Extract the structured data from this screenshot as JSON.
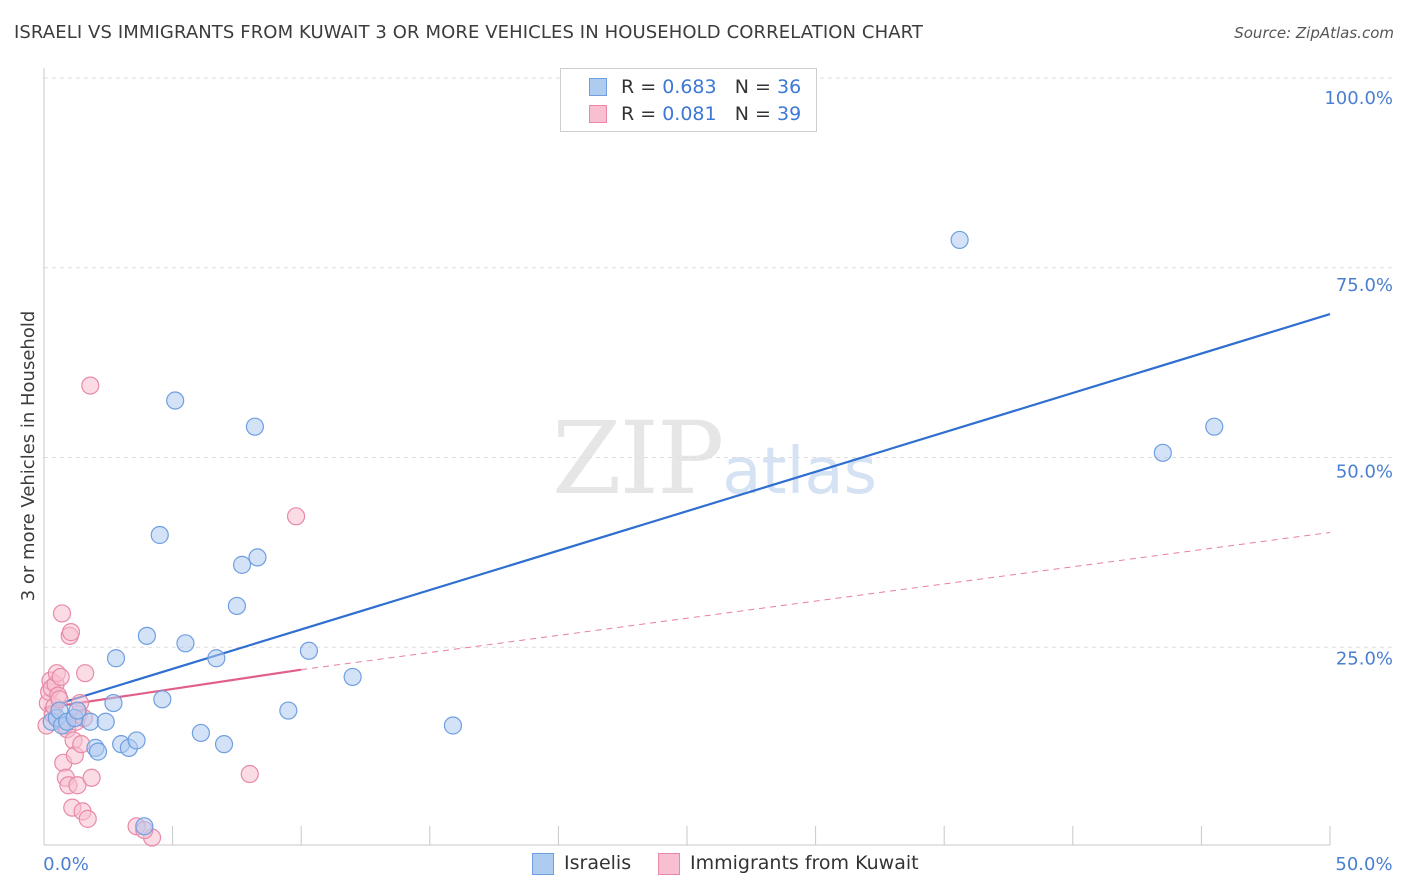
{
  "title": "ISRAELI VS IMMIGRANTS FROM KUWAIT 3 OR MORE VEHICLES IN HOUSEHOLD CORRELATION CHART",
  "source": "Source: ZipAtlas.com",
  "watermark": {
    "zip": "ZIP",
    "atlas": "atlas"
  },
  "legend": {
    "r_label": "R =",
    "n_label": "N =",
    "rows": [
      {
        "r": "0.683",
        "n": "36"
      },
      {
        "r": "0.081",
        "n": "39"
      }
    ]
  },
  "colors": {
    "israelis_fill": "#aecbf0",
    "israelis_stroke": "#6f9fe0",
    "israelis_line": "#2f6fd0",
    "kuwait_fill": "#f7bfd0",
    "kuwait_stroke": "#e889a8",
    "kuwait_line": "#e0608a",
    "tick_text": "#4a7fd1",
    "grid": "#dedede"
  },
  "chart_data": {
    "type": "scatter",
    "title": "ISRAELI VS IMMIGRANTS FROM KUWAIT 3 OR MORE VEHICLES IN HOUSEHOLD CORRELATION CHART",
    "xlabel": "",
    "ylabel": "3 or more Vehicles in Household",
    "xlim": [
      0,
      50
    ],
    "ylim": [
      0,
      100
    ],
    "x_tick_labels": [
      "0.0%",
      "50.0%"
    ],
    "y_ticks": [
      25,
      50,
      75,
      100
    ],
    "y_tick_labels": [
      "25.0%",
      "50.0%",
      "75.0%",
      "100.0%"
    ],
    "grid": true,
    "series": [
      {
        "name": "Israelis",
        "r": 0.683,
        "n": 36,
        "trend": {
          "x0": 0,
          "y0": 17.5,
          "x1": 50,
          "y1": 70,
          "style": "solid"
        },
        "points": [
          [
            0.3,
            16.5
          ],
          [
            0.5,
            17.0
          ],
          [
            0.6,
            18.0
          ],
          [
            0.7,
            16.0
          ],
          [
            0.9,
            16.5
          ],
          [
            1.2,
            17.0
          ],
          [
            1.3,
            18.0
          ],
          [
            1.8,
            16.5
          ],
          [
            2.0,
            13.0
          ],
          [
            2.1,
            12.5
          ],
          [
            2.4,
            16.5
          ],
          [
            2.7,
            19.0
          ],
          [
            2.8,
            25.0
          ],
          [
            3.0,
            13.5
          ],
          [
            3.3,
            13.0
          ],
          [
            3.6,
            14.0
          ],
          [
            3.9,
            2.5
          ],
          [
            4.0,
            28.0
          ],
          [
            4.6,
            19.5
          ],
          [
            4.5,
            41.5
          ],
          [
            5.1,
            59.5
          ],
          [
            5.5,
            27.0
          ],
          [
            6.1,
            15.0
          ],
          [
            6.7,
            25.0
          ],
          [
            7.0,
            13.5
          ],
          [
            7.5,
            32.0
          ],
          [
            7.7,
            37.5
          ],
          [
            8.2,
            56.0
          ],
          [
            8.3,
            38.5
          ],
          [
            9.5,
            18.0
          ],
          [
            10.3,
            26.0
          ],
          [
            12.0,
            22.5
          ],
          [
            15.9,
            16.0
          ],
          [
            35.6,
            81.0
          ],
          [
            43.5,
            52.5
          ],
          [
            45.5,
            56.0
          ]
        ]
      },
      {
        "name": "Immigrants from Kuwait",
        "r": 0.081,
        "n": 39,
        "trend": {
          "x0": 0,
          "y0": 17.5,
          "x1": 10,
          "y1": 22,
          "style": "solid",
          "extended": {
            "x1": 50,
            "y1": 40.5,
            "style": "dashed"
          }
        },
        "points": [
          [
            0.1,
            16.0
          ],
          [
            0.15,
            19.0
          ],
          [
            0.2,
            20.5
          ],
          [
            0.25,
            22.0
          ],
          [
            0.3,
            21.0
          ],
          [
            0.35,
            17.5
          ],
          [
            0.4,
            18.5
          ],
          [
            0.45,
            21.5
          ],
          [
            0.5,
            23.0
          ],
          [
            0.55,
            20.0
          ],
          [
            0.6,
            19.5
          ],
          [
            0.65,
            22.5
          ],
          [
            0.7,
            31.0
          ],
          [
            0.75,
            11.0
          ],
          [
            0.8,
            16.0
          ],
          [
            0.85,
            9.0
          ],
          [
            0.9,
            15.5
          ],
          [
            0.95,
            8.0
          ],
          [
            1.0,
            28.0
          ],
          [
            1.05,
            28.5
          ],
          [
            1.1,
            5.0
          ],
          [
            1.15,
            14.0
          ],
          [
            1.2,
            12.0
          ],
          [
            1.25,
            16.5
          ],
          [
            1.3,
            8.0
          ],
          [
            1.35,
            17.5
          ],
          [
            1.4,
            19.0
          ],
          [
            1.45,
            13.5
          ],
          [
            1.5,
            4.5
          ],
          [
            1.55,
            17.0
          ],
          [
            1.6,
            23.0
          ],
          [
            1.7,
            3.5
          ],
          [
            1.85,
            9.0
          ],
          [
            1.8,
            61.5
          ],
          [
            3.6,
            2.5
          ],
          [
            4.2,
            1.0
          ],
          [
            3.9,
            2.0
          ],
          [
            8.0,
            9.5
          ],
          [
            9.8,
            44.0
          ]
        ]
      }
    ]
  },
  "bottom_legend": [
    "Israelis",
    "Immigrants from Kuwait"
  ]
}
